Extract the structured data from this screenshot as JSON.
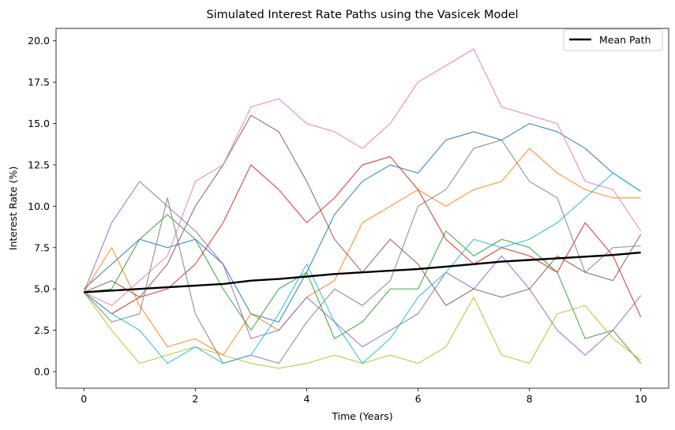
{
  "chart_data": {
    "type": "line",
    "title": "Simulated Interest Rate Paths using the Vasicek Model",
    "xlabel": "Time (Years)",
    "ylabel": "Interest Rate (%)",
    "xlim": [
      -0.5,
      10.5
    ],
    "ylim": [
      -1.0,
      20.75
    ],
    "xticks": [
      0,
      2,
      4,
      6,
      8,
      10
    ],
    "xtick_labels": [
      "0",
      "2",
      "4",
      "6",
      "8",
      "10"
    ],
    "yticks": [
      0,
      2.5,
      5,
      7.5,
      10,
      12.5,
      15,
      17.5,
      20
    ],
    "ytick_labels": [
      "0.0",
      "2.5",
      "5.0",
      "7.5",
      "10.0",
      "12.5",
      "15.0",
      "17.5",
      "20.0"
    ],
    "grid": false,
    "legend": {
      "placement": "top-right",
      "entries": [
        "Mean Path"
      ]
    },
    "series": [
      {
        "color": "#1f77b4",
        "x": [
          0,
          0.5,
          1,
          1.5,
          2,
          2.5,
          3,
          3.5,
          4,
          4.5,
          5,
          5.5,
          6,
          6.5,
          7,
          7.5,
          8,
          8.5,
          9,
          9.5,
          10
        ],
        "values": [
          5.0,
          6.5,
          8.0,
          7.5,
          8.0,
          6.5,
          3.5,
          3.0,
          6.0,
          9.5,
          11.5,
          12.5,
          12.0,
          14.0,
          14.5,
          14.0,
          15.0,
          14.5,
          13.5,
          12.0,
          10.9
        ]
      },
      {
        "color": "#ff7f0e",
        "x": [
          0,
          0.5,
          1,
          1.5,
          2,
          2.5,
          3,
          3.5,
          4,
          4.5,
          5,
          5.5,
          6,
          6.5,
          7,
          7.5,
          8,
          8.5,
          9,
          9.5,
          10
        ],
        "values": [
          4.8,
          7.5,
          4.0,
          1.5,
          2.0,
          1.0,
          3.5,
          2.5,
          4.5,
          5.5,
          9.0,
          10.0,
          11.0,
          10.0,
          11.0,
          11.5,
          13.5,
          12.0,
          11.0,
          10.5,
          10.5
        ]
      },
      {
        "color": "#2ca02c",
        "x": [
          0,
          0.5,
          1,
          1.5,
          2,
          2.5,
          3,
          3.5,
          4,
          4.5,
          5,
          5.5,
          6,
          6.5,
          7,
          7.5,
          8,
          8.5,
          9,
          9.5,
          10
        ],
        "values": [
          4.8,
          5.0,
          8.0,
          9.5,
          8.0,
          5.0,
          2.5,
          5.0,
          6.0,
          2.0,
          3.0,
          5.0,
          5.0,
          8.5,
          7.0,
          8.0,
          7.5,
          6.0,
          2.0,
          2.5,
          0.5
        ]
      },
      {
        "color": "#d62728",
        "x": [
          0,
          0.5,
          1,
          1.5,
          2,
          2.5,
          3,
          3.5,
          4,
          4.5,
          5,
          5.5,
          6,
          6.5,
          7,
          7.5,
          8,
          8.5,
          9,
          9.5,
          10
        ],
        "values": [
          4.8,
          3.5,
          4.5,
          5.0,
          6.5,
          9.0,
          12.5,
          11.0,
          9.0,
          10.5,
          12.5,
          13.0,
          11.0,
          8.0,
          6.5,
          7.5,
          7.0,
          6.0,
          9.0,
          7.0,
          3.3
        ]
      },
      {
        "color": "#9467bd",
        "x": [
          0,
          0.5,
          1,
          1.5,
          2,
          2.5,
          3,
          3.5,
          4,
          4.5,
          5,
          5.5,
          6,
          6.5,
          7,
          7.5,
          8,
          8.5,
          9,
          9.5,
          10
        ],
        "values": [
          4.8,
          9.0,
          11.5,
          10.0,
          8.5,
          6.5,
          2.0,
          2.5,
          4.5,
          3.0,
          1.5,
          2.5,
          3.5,
          6.0,
          5.0,
          7.0,
          5.0,
          2.5,
          1.0,
          2.5,
          4.6
        ]
      },
      {
        "color": "#8c564b",
        "x": [
          0,
          0.5,
          1,
          1.5,
          2,
          2.5,
          3,
          3.5,
          4,
          4.5,
          5,
          5.5,
          6,
          6.5,
          7,
          7.5,
          8,
          8.5,
          9,
          9.5,
          10
        ],
        "values": [
          4.8,
          5.5,
          4.5,
          6.5,
          10.0,
          12.5,
          15.5,
          14.5,
          11.5,
          8.0,
          6.0,
          8.0,
          6.5,
          4.0,
          5.0,
          4.5,
          5.0,
          7.0,
          6.0,
          5.5,
          8.3
        ]
      },
      {
        "color": "#e377c2",
        "x": [
          0,
          0.5,
          1,
          1.5,
          2,
          2.5,
          3,
          3.5,
          4,
          4.5,
          5,
          5.5,
          6,
          6.5,
          7,
          7.5,
          8,
          8.5,
          9,
          9.5,
          10
        ],
        "values": [
          4.8,
          4.0,
          5.5,
          7.0,
          11.5,
          12.5,
          16.0,
          16.5,
          15.0,
          14.5,
          13.5,
          15.0,
          17.5,
          18.5,
          19.5,
          16.0,
          15.5,
          15.0,
          11.5,
          11.0,
          8.5
        ]
      },
      {
        "color": "#7f7f7f",
        "x": [
          0,
          0.5,
          1,
          1.5,
          2,
          2.5,
          3,
          3.5,
          4,
          4.5,
          5,
          5.5,
          6,
          6.5,
          7,
          7.5,
          8,
          8.5,
          9,
          9.5,
          10
        ],
        "values": [
          4.8,
          3.0,
          3.5,
          10.5,
          3.5,
          0.5,
          1.0,
          0.5,
          3.0,
          5.0,
          4.0,
          5.5,
          10.0,
          11.0,
          13.5,
          14.0,
          11.5,
          10.5,
          6.0,
          7.5,
          7.6
        ]
      },
      {
        "color": "#bcbd22",
        "x": [
          0,
          0.5,
          1,
          1.5,
          2,
          2.5,
          3,
          3.5,
          4,
          4.5,
          5,
          5.5,
          6,
          6.5,
          7,
          7.5,
          8,
          8.5,
          9,
          9.5,
          10
        ],
        "values": [
          4.8,
          2.5,
          0.5,
          1.0,
          1.5,
          1.0,
          0.5,
          0.2,
          0.5,
          1.0,
          0.5,
          1.0,
          0.5,
          1.5,
          4.5,
          1.0,
          0.5,
          3.5,
          4.0,
          2.0,
          0.7
        ]
      },
      {
        "color": "#17becf",
        "x": [
          0,
          0.5,
          1,
          1.5,
          2,
          2.5,
          3,
          3.5,
          4,
          4.5,
          5,
          5.5,
          6,
          6.5,
          7,
          7.5,
          8,
          8.5,
          9,
          9.5,
          10
        ],
        "values": [
          4.8,
          3.5,
          2.5,
          0.5,
          1.5,
          0.5,
          1.0,
          3.5,
          6.5,
          3.0,
          0.5,
          2.0,
          4.5,
          6.0,
          8.0,
          7.5,
          8.0,
          9.0,
          10.5,
          12.0,
          10.9
        ]
      },
      {
        "name": "Mean Path",
        "color": "#000000",
        "x": [
          0,
          0.5,
          1,
          1.5,
          2,
          2.5,
          3,
          3.5,
          4,
          4.5,
          5,
          5.5,
          6,
          6.5,
          7,
          7.5,
          8,
          8.5,
          9,
          9.5,
          10
        ],
        "values": [
          4.8,
          4.9,
          5.0,
          5.1,
          5.2,
          5.3,
          5.5,
          5.6,
          5.75,
          5.9,
          6.0,
          6.1,
          6.2,
          6.35,
          6.5,
          6.65,
          6.75,
          6.85,
          6.95,
          7.05,
          7.2
        ]
      }
    ]
  }
}
